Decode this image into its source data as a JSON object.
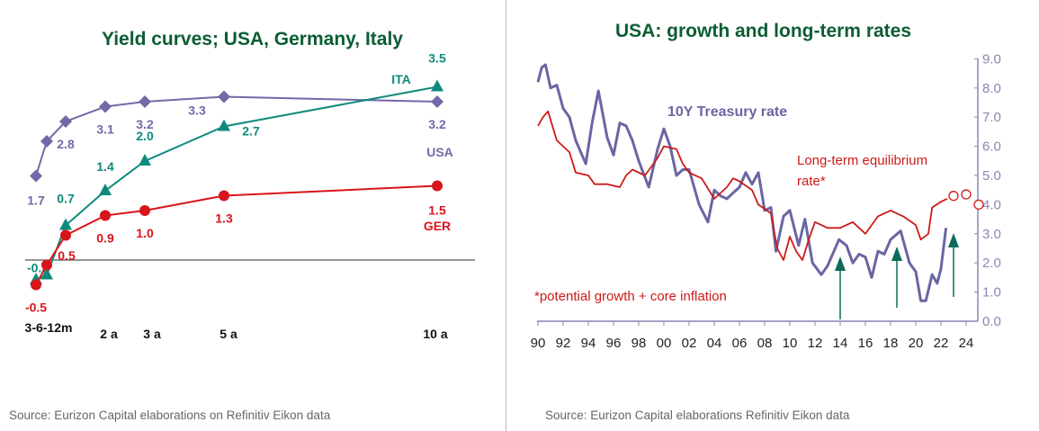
{
  "chart_data": [
    {
      "type": "line",
      "title": "Yield curves; USA, Germany, Italy",
      "categories": [
        "3m",
        "6m",
        "12m",
        "2a",
        "3a",
        "5a",
        "10a"
      ],
      "tick_labels": [
        "3-6-12m",
        "2 a",
        "3 a",
        "5 a",
        "10 a"
      ],
      "series": [
        {
          "name": "USA",
          "color": "#7468a8",
          "marker": "diamond",
          "values": [
            1.7,
            2.4,
            2.8,
            3.1,
            3.2,
            3.3,
            3.2
          ],
          "labels": [
            "1.7",
            null,
            "2.8",
            "3.1",
            "3.2",
            "3.3",
            "3.2"
          ]
        },
        {
          "name": "ITA",
          "color": "#0e8a7c",
          "marker": "triangle",
          "values": [
            -0.4,
            -0.3,
            0.7,
            1.4,
            2.0,
            2.7,
            3.5
          ],
          "labels": [
            null,
            "-0.3",
            "0.7",
            "1.4",
            "2.0",
            "2.7",
            "3.5"
          ]
        },
        {
          "name": "GER",
          "color": "#d9141b",
          "marker": "circle",
          "values": [
            -0.5,
            -0.1,
            0.5,
            0.9,
            1.0,
            1.3,
            1.5
          ],
          "labels": [
            "-0.5",
            null,
            "0.5",
            "0.9",
            "1.0",
            "1.3",
            "1.5"
          ]
        }
      ],
      "zero_line": true,
      "source": "Source: Eurizon Capital elaborations on Refinitiv Eikon data"
    },
    {
      "type": "line",
      "title": "USA: growth and long-term rates",
      "xlim": [
        1990,
        2025
      ],
      "ylim": [
        0,
        9
      ],
      "x_tick_labels": [
        "90",
        "92",
        "94",
        "96",
        "98",
        "00",
        "02",
        "04",
        "06",
        "08",
        "10",
        "12",
        "14",
        "16",
        "18",
        "20",
        "22",
        "24"
      ],
      "y_tick_labels": [
        "0.0",
        "1.0",
        "2.0",
        "3.0",
        "4.0",
        "5.0",
        "6.0",
        "7.0",
        "8.0",
        "9.0"
      ],
      "y_axis_side": "right",
      "series": [
        {
          "name": "10Y Treasury rate",
          "color": "#6a66a3",
          "points": [
            [
              1990,
              8.2
            ],
            [
              1990.3,
              8.7
            ],
            [
              1990.6,
              8.8
            ],
            [
              1991,
              8.0
            ],
            [
              1991.5,
              8.1
            ],
            [
              1992,
              7.3
            ],
            [
              1992.5,
              7.0
            ],
            [
              1993,
              6.2
            ],
            [
              1993.8,
              5.4
            ],
            [
              1994.3,
              6.8
            ],
            [
              1994.8,
              7.9
            ],
            [
              1995.5,
              6.3
            ],
            [
              1996,
              5.7
            ],
            [
              1996.5,
              6.8
            ],
            [
              1997,
              6.7
            ],
            [
              1997.5,
              6.2
            ],
            [
              1998,
              5.5
            ],
            [
              1998.8,
              4.6
            ],
            [
              1999.5,
              5.9
            ],
            [
              2000,
              6.6
            ],
            [
              2000.5,
              6.0
            ],
            [
              2001,
              5.0
            ],
            [
              2001.5,
              5.2
            ],
            [
              2002,
              5.2
            ],
            [
              2002.8,
              4.0
            ],
            [
              2003.5,
              3.4
            ],
            [
              2004,
              4.5
            ],
            [
              2004.5,
              4.3
            ],
            [
              2005,
              4.2
            ],
            [
              2005.5,
              4.4
            ],
            [
              2006,
              4.6
            ],
            [
              2006.5,
              5.1
            ],
            [
              2007,
              4.7
            ],
            [
              2007.5,
              5.1
            ],
            [
              2008,
              3.8
            ],
            [
              2008.5,
              3.9
            ],
            [
              2008.9,
              2.4
            ],
            [
              2009.5,
              3.6
            ],
            [
              2010,
              3.8
            ],
            [
              2010.7,
              2.6
            ],
            [
              2011.2,
              3.5
            ],
            [
              2011.8,
              2.0
            ],
            [
              2012.5,
              1.6
            ],
            [
              2013,
              1.9
            ],
            [
              2013.9,
              2.8
            ],
            [
              2014.5,
              2.6
            ],
            [
              2015,
              2.0
            ],
            [
              2015.5,
              2.3
            ],
            [
              2016,
              2.2
            ],
            [
              2016.5,
              1.5
            ],
            [
              2017,
              2.4
            ],
            [
              2017.5,
              2.3
            ],
            [
              2018,
              2.8
            ],
            [
              2018.8,
              3.1
            ],
            [
              2019.5,
              2.0
            ],
            [
              2020,
              1.7
            ],
            [
              2020.4,
              0.7
            ],
            [
              2020.8,
              0.7
            ],
            [
              2021.3,
              1.6
            ],
            [
              2021.7,
              1.3
            ],
            [
              2022,
              1.8
            ],
            [
              2022.4,
              3.2
            ]
          ]
        },
        {
          "name": "Long-term equilibrium rate*",
          "color": "#cc1a1a",
          "points": [
            [
              1990,
              6.7
            ],
            [
              1990.4,
              7.0
            ],
            [
              1990.8,
              7.2
            ],
            [
              1991.5,
              6.2
            ],
            [
              1992.5,
              5.8
            ],
            [
              1993,
              5.1
            ],
            [
              1994,
              5.0
            ],
            [
              1994.5,
              4.7
            ],
            [
              1995.5,
              4.7
            ],
            [
              1996.5,
              4.6
            ],
            [
              1997,
              5.0
            ],
            [
              1997.5,
              5.2
            ],
            [
              1998.5,
              5.0
            ],
            [
              1999.5,
              5.6
            ],
            [
              2000,
              6.0
            ],
            [
              2001,
              5.9
            ],
            [
              2001.5,
              5.4
            ],
            [
              2002,
              5.1
            ],
            [
              2003,
              4.9
            ],
            [
              2004,
              4.2
            ],
            [
              2005,
              4.6
            ],
            [
              2005.5,
              4.9
            ],
            [
              2006,
              4.8
            ],
            [
              2007,
              4.5
            ],
            [
              2007.5,
              4.0
            ],
            [
              2008.5,
              3.7
            ],
            [
              2009,
              2.5
            ],
            [
              2009.5,
              2.1
            ],
            [
              2010,
              2.9
            ],
            [
              2010.5,
              2.4
            ],
            [
              2011,
              2.1
            ],
            [
              2011.5,
              2.8
            ],
            [
              2012,
              3.4
            ],
            [
              2013,
              3.2
            ],
            [
              2014,
              3.2
            ],
            [
              2015,
              3.4
            ],
            [
              2016,
              3.0
            ],
            [
              2016.5,
              3.3
            ],
            [
              2017,
              3.6
            ],
            [
              2018,
              3.8
            ],
            [
              2019,
              3.6
            ],
            [
              2020,
              3.3
            ],
            [
              2020.4,
              2.8
            ],
            [
              2021,
              3.0
            ],
            [
              2021.3,
              3.9
            ],
            [
              2022,
              4.1
            ],
            [
              2022.5,
              4.2
            ]
          ]
        },
        {
          "name": "projection",
          "color": "#cc1a1a",
          "marker": "open-circle",
          "points": [
            [
              2023,
              4.3
            ],
            [
              2024,
              4.35
            ],
            [
              2025,
              4.0
            ]
          ]
        }
      ],
      "annotations": {
        "series_label_treasury": "10Y Treasury rate",
        "series_label_equilibrium_1": "Long-term equilibrium",
        "series_label_equilibrium_2": "rate*",
        "footnote": "*potential growth + core inflation",
        "arrows_at_years": [
          2014,
          2018.5,
          2023
        ],
        "arrow_color": "#0e6b5a"
      },
      "source": "Source: Eurizon Capital elaborations Refinitiv  Eikon data"
    }
  ]
}
